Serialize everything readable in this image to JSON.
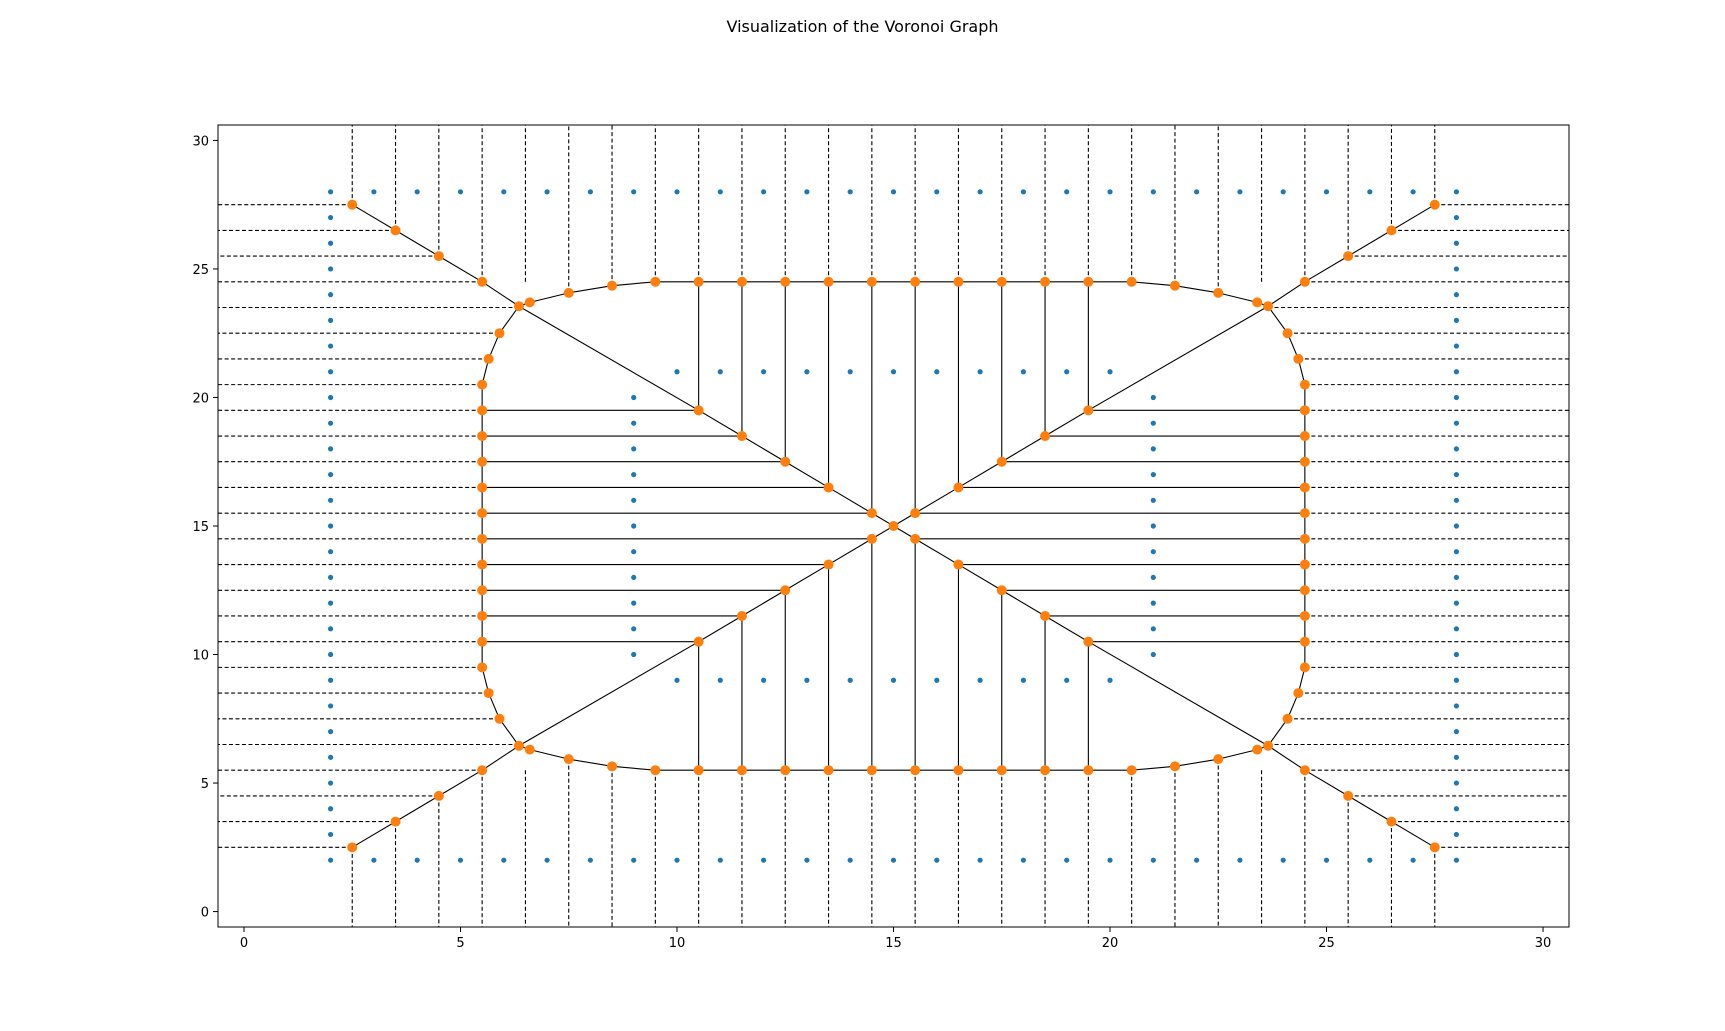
{
  "chart_data": {
    "type": "scatter",
    "title": "Visualization of the Voronoi Graph",
    "xlabel": "",
    "ylabel": "",
    "xlim": [
      -0.6,
      30.6
    ],
    "ylim": [
      -0.6,
      30.6
    ],
    "xticks": [
      0,
      5,
      10,
      15,
      20,
      25,
      30
    ],
    "yticks": [
      0,
      5,
      10,
      15,
      20,
      25,
      30
    ],
    "grid": false,
    "colors": {
      "points": "#1f77b4",
      "vertices": "#ff7f0e",
      "edges": "#000000"
    },
    "series": [
      {
        "style": "points",
        "rows": [
          {
            "y": 28,
            "x_from": 2,
            "x_to": 28,
            "step": 1
          },
          {
            "y": 2,
            "x_from": 2,
            "x_to": 28,
            "step": 1
          },
          {
            "y": 21,
            "x_from": 10,
            "x_to": 20,
            "step": 1
          },
          {
            "y": 9,
            "x_from": 10,
            "x_to": 20,
            "step": 1
          }
        ],
        "cols": [
          {
            "x": 2,
            "y_from": 3,
            "y_to": 27,
            "step": 1
          },
          {
            "x": 28,
            "y_from": 3,
            "y_to": 27,
            "step": 1
          },
          {
            "x": 9,
            "y_from": 10,
            "y_to": 20,
            "step": 1
          },
          {
            "x": 21,
            "y_from": 10,
            "y_to": 20,
            "step": 1
          }
        ]
      },
      {
        "style": "voronoi-vertices",
        "loop": {
          "top_y": 24.5,
          "bottom_y": 5.5,
          "left_x": 5.5,
          "right_x": 24.5,
          "straight_x": [
            9.5,
            20.5
          ],
          "straight_y": [
            9.5,
            20.5
          ],
          "corner_top_left": [
            [
              6.35,
              23.55
            ],
            [
              6.6,
              23.7
            ],
            [
              7.5,
              24.07
            ],
            [
              8.5,
              24.35
            ]
          ],
          "corner_side_top_left": [
            [
              5.9,
              22.5
            ],
            [
              5.65,
              21.5
            ]
          ],
          "corner_bottom_left": [
            [
              6.35,
              6.45
            ],
            [
              6.6,
              6.3
            ],
            [
              7.5,
              5.93
            ],
            [
              8.5,
              5.65
            ]
          ],
          "corner_side_bottom_left": [
            [
              5.9,
              7.5
            ],
            [
              5.65,
              8.5
            ]
          ]
        },
        "diagonal_outer": [
          [
            2.5,
            27.5
          ],
          [
            3.5,
            26.5
          ],
          [
            4.5,
            25.5
          ],
          [
            5.5,
            24.5
          ]
        ],
        "diagonal_inner": [
          [
            10.5,
            19.5
          ],
          [
            11.5,
            18.5
          ],
          [
            12.5,
            17.5
          ],
          [
            13.5,
            16.5
          ],
          [
            14.5,
            15.5
          ]
        ],
        "center": [
          15,
          15
        ]
      }
    ]
  }
}
